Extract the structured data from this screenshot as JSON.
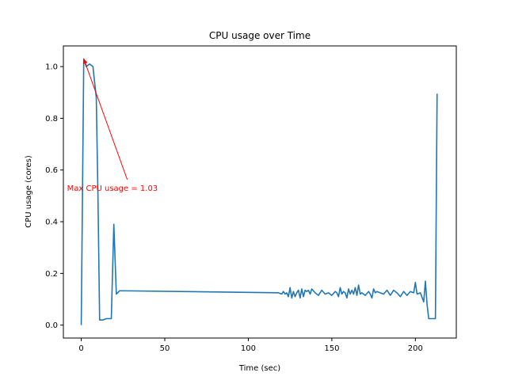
{
  "chart_data": {
    "type": "line",
    "title": "CPU usage over Time",
    "xlabel": "Time (sec)",
    "ylabel": "CPU usage (cores)",
    "xlim": [
      -10.7,
      224.5
    ],
    "ylim": [
      -0.05,
      1.08
    ],
    "xticks": [
      0,
      50,
      100,
      150,
      200
    ],
    "yticks": [
      0.0,
      0.2,
      0.4,
      0.6,
      0.8,
      1.0
    ],
    "xtick_labels": [
      "0",
      "50",
      "100",
      "150",
      "200"
    ],
    "ytick_labels": [
      "0.0",
      "0.2",
      "0.4",
      "0.6",
      "0.8",
      "1.0"
    ],
    "grid": false,
    "series": [
      {
        "color": "#1f77b4",
        "x": [
          0,
          1.5,
          3,
          5,
          7,
          9,
          10,
          11,
          13,
          15,
          17,
          18,
          19.5,
          21,
          23,
          118,
          120,
          121,
          122,
          123,
          124,
          125,
          126,
          127,
          128,
          129,
          130,
          131,
          132,
          133,
          134,
          135,
          136,
          137,
          138,
          140,
          142,
          144,
          146,
          148,
          150,
          152,
          153,
          154,
          155,
          156,
          157,
          158,
          159,
          160,
          161,
          162,
          163,
          164,
          165,
          166,
          167,
          168,
          170,
          172,
          173,
          174,
          175,
          176,
          177,
          179,
          181,
          183,
          185,
          187,
          189,
          191,
          193,
          195,
          197,
          199,
          200,
          201,
          203,
          205,
          206,
          207,
          208,
          209,
          210,
          212,
          213
        ],
        "y": [
          0.0,
          1.03,
          1.0,
          1.01,
          1.0,
          0.88,
          0.5,
          0.02,
          0.02,
          0.025,
          0.025,
          0.025,
          0.39,
          0.12,
          0.133,
          0.125,
          0.12,
          0.13,
          0.12,
          0.125,
          0.11,
          0.145,
          0.105,
          0.13,
          0.11,
          0.125,
          0.135,
          0.105,
          0.14,
          0.11,
          0.135,
          0.13,
          0.135,
          0.12,
          0.14,
          0.125,
          0.115,
          0.135,
          0.12,
          0.125,
          0.115,
          0.13,
          0.125,
          0.11,
          0.145,
          0.12,
          0.13,
          0.125,
          0.105,
          0.14,
          0.12,
          0.135,
          0.12,
          0.145,
          0.115,
          0.155,
          0.12,
          0.125,
          0.115,
          0.13,
          0.12,
          0.105,
          0.14,
          0.125,
          0.13,
          0.125,
          0.12,
          0.135,
          0.115,
          0.135,
          0.125,
          0.11,
          0.13,
          0.115,
          0.13,
          0.125,
          0.165,
          0.12,
          0.125,
          0.09,
          0.17,
          0.08,
          0.025,
          0.025,
          0.025,
          0.025,
          0.895
        ]
      }
    ],
    "annotation": {
      "text": "Max CPU usage = 1.03",
      "color": "#ff0000",
      "point": [
        1.5,
        1.03
      ],
      "text_pos": [
        -8.5,
        0.52
      ]
    }
  }
}
